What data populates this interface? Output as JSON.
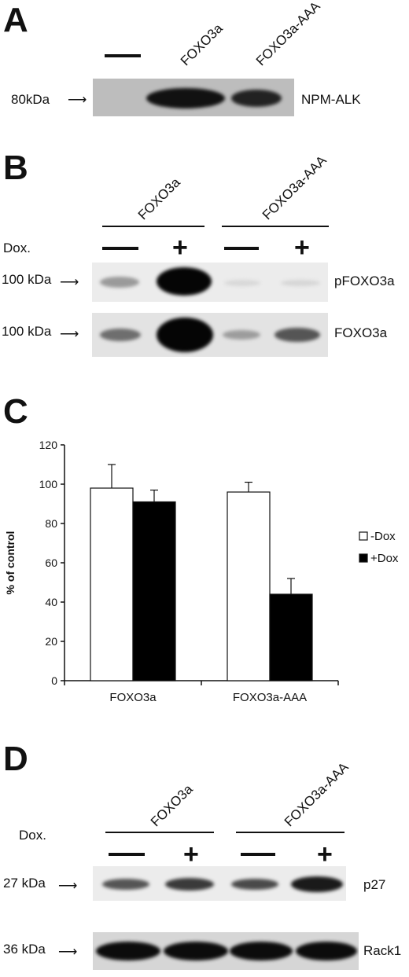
{
  "panel_a": {
    "letter": "A",
    "lane_labels": [
      "FOXO3a",
      "FOXO3a-AAA"
    ],
    "marker": "80kDa",
    "band_label": "NPM-ALK"
  },
  "panel_b": {
    "letter": "B",
    "group_labels": [
      "FOXO3a",
      "FOXO3a-AAA"
    ],
    "dox_label": "Dox.",
    "plus": "+",
    "markers": [
      "100 kDa",
      "100 kDa"
    ],
    "band_labels": [
      "pFOXO3a",
      "FOXO3a"
    ]
  },
  "panel_c": {
    "letter": "C"
  },
  "panel_d": {
    "letter": "D",
    "group_labels": [
      "FOXO3a",
      "FOXO3a-AAA"
    ],
    "dox_label": "Dox.",
    "plus": "+",
    "markers": [
      "27 kDa",
      "36 kDa"
    ],
    "band_labels": [
      "p27",
      "Rack1"
    ]
  },
  "chart_data": {
    "type": "bar",
    "categories": [
      "FOXO3a",
      "FOXO3a-AAA"
    ],
    "series": [
      {
        "name": "-Dox",
        "values": [
          98,
          96
        ],
        "errors": [
          12,
          5
        ],
        "color": "#ffffff"
      },
      {
        "name": "+Dox",
        "values": [
          91,
          44
        ],
        "errors": [
          6,
          8
        ],
        "color": "#000000"
      }
    ],
    "ylabel": "% of control",
    "ylim": [
      0,
      120
    ],
    "yticks": [
      0,
      20,
      40,
      60,
      80,
      100,
      120
    ],
    "legend_position": "right",
    "grid": false
  }
}
